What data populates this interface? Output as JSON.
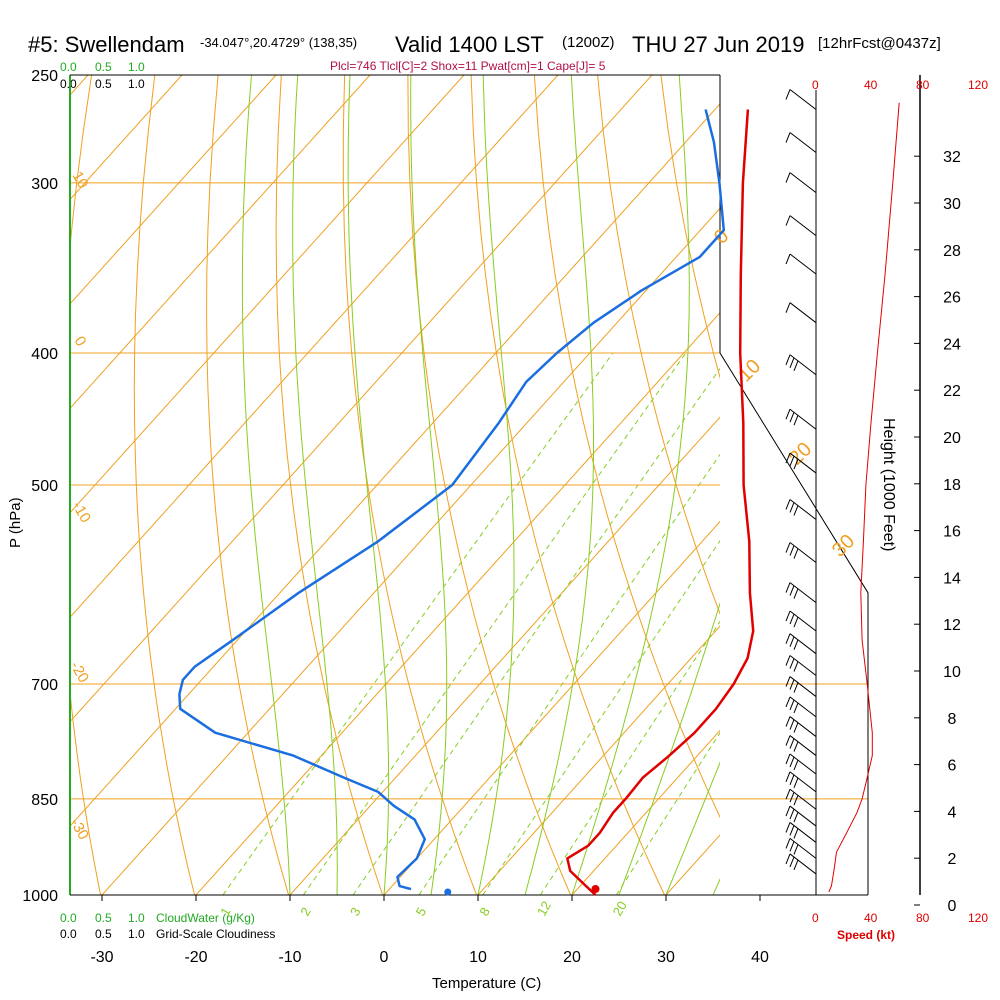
{
  "header": {
    "station": "#5: Swellendam",
    "coords": "-34.047°,20.4729° (138,35)",
    "valid": "Valid 1400 LST",
    "zulu": "(1200Z)",
    "date": "THU 27 Jun 2019",
    "fcst": "[12hrFcst@0437z]",
    "params": "Plcl=746 Tlcl[C]=2 Shox=11 Pwat[cm]=1 Cape[J]= 5"
  },
  "colors": {
    "temp": "#e00000",
    "dew": "#1a6ee0",
    "isotherm": "#f0a020",
    "dry_adiabat": "#f0a020",
    "moist_adiabat": "#88cc22",
    "mixing_ratio": "#88cc22",
    "wind": "#000000",
    "speed": "#e00000"
  },
  "chart_data": {
    "type": "skew-t",
    "title": "#5: Swellendam Valid 1400 LST (1200Z) THU 27 Jun 2019",
    "xlabel": "Temperature (C)",
    "ylabel": "P (hPa)",
    "height_label": "Height (1000 Feet)",
    "x_ticks": [
      -30,
      -20,
      -10,
      0,
      10,
      20,
      30,
      40
    ],
    "x_tick_labels": [
      "-30",
      "-20",
      "-10",
      "0",
      "10",
      "20",
      "30",
      "40"
    ],
    "pressure_levels": [
      {
        "p": 250,
        "label": "250"
      },
      {
        "p": 300,
        "label": "300"
      },
      {
        "p": 400,
        "label": "400"
      },
      {
        "p": 500,
        "label": "500"
      },
      {
        "p": 700,
        "label": "700"
      },
      {
        "p": 850,
        "label": "850"
      },
      {
        "p": 1000,
        "label": "1000"
      }
    ],
    "height_ticks": [
      {
        "kft": 0,
        "label": "0"
      },
      {
        "kft": 2,
        "label": "2"
      },
      {
        "kft": 4,
        "label": "4"
      },
      {
        "kft": 6,
        "label": "6"
      },
      {
        "kft": 8,
        "label": "8"
      },
      {
        "kft": 10,
        "label": "10"
      },
      {
        "kft": 12,
        "label": "12"
      },
      {
        "kft": 14,
        "label": "14"
      },
      {
        "kft": 16,
        "label": "16"
      },
      {
        "kft": 18,
        "label": "18"
      },
      {
        "kft": 20,
        "label": "20"
      },
      {
        "kft": 22,
        "label": "22"
      },
      {
        "kft": 24,
        "label": "24"
      },
      {
        "kft": 26,
        "label": "26"
      },
      {
        "kft": 28,
        "label": "28"
      },
      {
        "kft": 30,
        "label": "30"
      },
      {
        "kft": 32,
        "label": "32"
      }
    ],
    "temperature_profile": [
      {
        "p": 1000,
        "t": 22.5
      },
      {
        "p": 980,
        "t": 20.0
      },
      {
        "p": 960,
        "t": 17.5
      },
      {
        "p": 940,
        "t": 16.0
      },
      {
        "p": 920,
        "t": 17.0
      },
      {
        "p": 900,
        "t": 17.0
      },
      {
        "p": 870,
        "t": 16.5
      },
      {
        "p": 850,
        "t": 16.5
      },
      {
        "p": 820,
        "t": 16.3
      },
      {
        "p": 790,
        "t": 17.0
      },
      {
        "p": 760,
        "t": 17.5
      },
      {
        "p": 730,
        "t": 17.5
      },
      {
        "p": 700,
        "t": 17.0
      },
      {
        "p": 670,
        "t": 16.0
      },
      {
        "p": 640,
        "t": 14.0
      },
      {
        "p": 600,
        "t": 10.0
      },
      {
        "p": 550,
        "t": 5.0
      },
      {
        "p": 500,
        "t": -1.0
      },
      {
        "p": 450,
        "t": -7.0
      },
      {
        "p": 400,
        "t": -14.0
      },
      {
        "p": 350,
        "t": -21.5
      },
      {
        "p": 300,
        "t": -30.0
      },
      {
        "p": 265,
        "t": -36.5
      }
    ],
    "dewpoint_profile": [
      {
        "p": 990,
        "t": 2.3
      },
      {
        "p": 985,
        "t": 0.8
      },
      {
        "p": 970,
        "t": -0.3
      },
      {
        "p": 940,
        "t": 0.0
      },
      {
        "p": 910,
        "t": -1.0
      },
      {
        "p": 880,
        "t": -4.0
      },
      {
        "p": 860,
        "t": -7.5
      },
      {
        "p": 840,
        "t": -10.5
      },
      {
        "p": 820,
        "t": -15.5
      },
      {
        "p": 790,
        "t": -23.0
      },
      {
        "p": 760,
        "t": -33.5
      },
      {
        "p": 730,
        "t": -39.5
      },
      {
        "p": 712,
        "t": -41.0
      },
      {
        "p": 695,
        "t": -42.0
      },
      {
        "p": 680,
        "t": -42.0
      },
      {
        "p": 650,
        "t": -40.5
      },
      {
        "p": 600,
        "t": -38.0
      },
      {
        "p": 550,
        "t": -34.5
      },
      {
        "p": 500,
        "t": -32.0
      },
      {
        "p": 450,
        "t": -33.0
      },
      {
        "p": 420,
        "t": -34.0
      },
      {
        "p": 400,
        "t": -33.5
      },
      {
        "p": 380,
        "t": -32.5
      },
      {
        "p": 360,
        "t": -30.5
      },
      {
        "p": 340,
        "t": -27.5
      },
      {
        "p": 325,
        "t": -27.5
      },
      {
        "p": 300,
        "t": -32.5
      },
      {
        "p": 280,
        "t": -37.0
      },
      {
        "p": 265,
        "t": -41.0
      }
    ],
    "surface_temp_marker": {
      "p": 1000,
      "t": 22.5
    },
    "surface_dew_marker": {
      "p": 995,
      "t": 6.5
    },
    "isotherm_labels": [
      {
        "t": -10,
        "label": "-10"
      },
      {
        "t": 0,
        "label": "0"
      },
      {
        "t": 10,
        "label": "10"
      },
      {
        "t": 20,
        "label": "20"
      },
      {
        "t": 30,
        "label": "30"
      },
      {
        "t": -20,
        "label": "-20"
      },
      {
        "t": -30,
        "label": "-30"
      }
    ],
    "mixing_ratio_lines": [
      {
        "w": 1,
        "label": "1"
      },
      {
        "w": 2,
        "label": "2"
      },
      {
        "w": 3,
        "label": "3"
      },
      {
        "w": 5,
        "label": "5"
      },
      {
        "w": 8,
        "label": "8"
      },
      {
        "w": 12,
        "label": "12"
      },
      {
        "w": 20,
        "label": "20"
      }
    ],
    "speed_axis_labels": [
      "0",
      "40",
      "80",
      "120"
    ],
    "speed_axis_title": "Speed (kt)",
    "wind_speed_profile": [
      {
        "p": 995,
        "kt": 10
      },
      {
        "p": 985,
        "kt": 12
      },
      {
        "p": 960,
        "kt": 14
      },
      {
        "p": 930,
        "kt": 16
      },
      {
        "p": 900,
        "kt": 24
      },
      {
        "p": 870,
        "kt": 32
      },
      {
        "p": 850,
        "kt": 36
      },
      {
        "p": 820,
        "kt": 40
      },
      {
        "p": 790,
        "kt": 44
      },
      {
        "p": 760,
        "kt": 44
      },
      {
        "p": 730,
        "kt": 42
      },
      {
        "p": 700,
        "kt": 40
      },
      {
        "p": 650,
        "kt": 36
      },
      {
        "p": 600,
        "kt": 35
      },
      {
        "p": 550,
        "kt": 37
      },
      {
        "p": 500,
        "kt": 39
      },
      {
        "p": 450,
        "kt": 43
      },
      {
        "p": 400,
        "kt": 48
      },
      {
        "p": 350,
        "kt": 54
      },
      {
        "p": 300,
        "kt": 60
      },
      {
        "p": 262,
        "kt": 65
      }
    ],
    "wind_barbs": [
      {
        "p": 265,
        "kt": 10
      },
      {
        "p": 285,
        "kt": 10
      },
      {
        "p": 305,
        "kt": 10
      },
      {
        "p": 328,
        "kt": 10
      },
      {
        "p": 350,
        "kt": 10
      },
      {
        "p": 380,
        "kt": 10
      },
      {
        "p": 415,
        "kt": 30
      },
      {
        "p": 455,
        "kt": 30
      },
      {
        "p": 490,
        "kt": 30
      },
      {
        "p": 530,
        "kt": 30
      },
      {
        "p": 570,
        "kt": 30
      },
      {
        "p": 610,
        "kt": 30
      },
      {
        "p": 640,
        "kt": 30
      },
      {
        "p": 665,
        "kt": 30
      },
      {
        "p": 690,
        "kt": 30
      },
      {
        "p": 715,
        "kt": 30
      },
      {
        "p": 740,
        "kt": 30
      },
      {
        "p": 765,
        "kt": 30
      },
      {
        "p": 790,
        "kt": 30
      },
      {
        "p": 815,
        "kt": 30
      },
      {
        "p": 840,
        "kt": 30
      },
      {
        "p": 865,
        "kt": 30
      },
      {
        "p": 890,
        "kt": 30
      },
      {
        "p": 915,
        "kt": 30
      },
      {
        "p": 940,
        "kt": 30
      },
      {
        "p": 965,
        "kt": 30
      }
    ]
  },
  "legend": {
    "cloud_top_values": [
      "0.0",
      "0.5",
      "1.0"
    ],
    "cloud_top_values_black": [
      "0.0",
      "0.5",
      "1.0"
    ],
    "cloudwater_values": [
      "0.0",
      "0.5",
      "1.0"
    ],
    "cloudwater_label": "CloudWater (g/Kg)",
    "gridscale_values": [
      "0.0",
      "0.5",
      "1.0"
    ],
    "gridscale_label": "Grid-Scale Cloudiness"
  }
}
